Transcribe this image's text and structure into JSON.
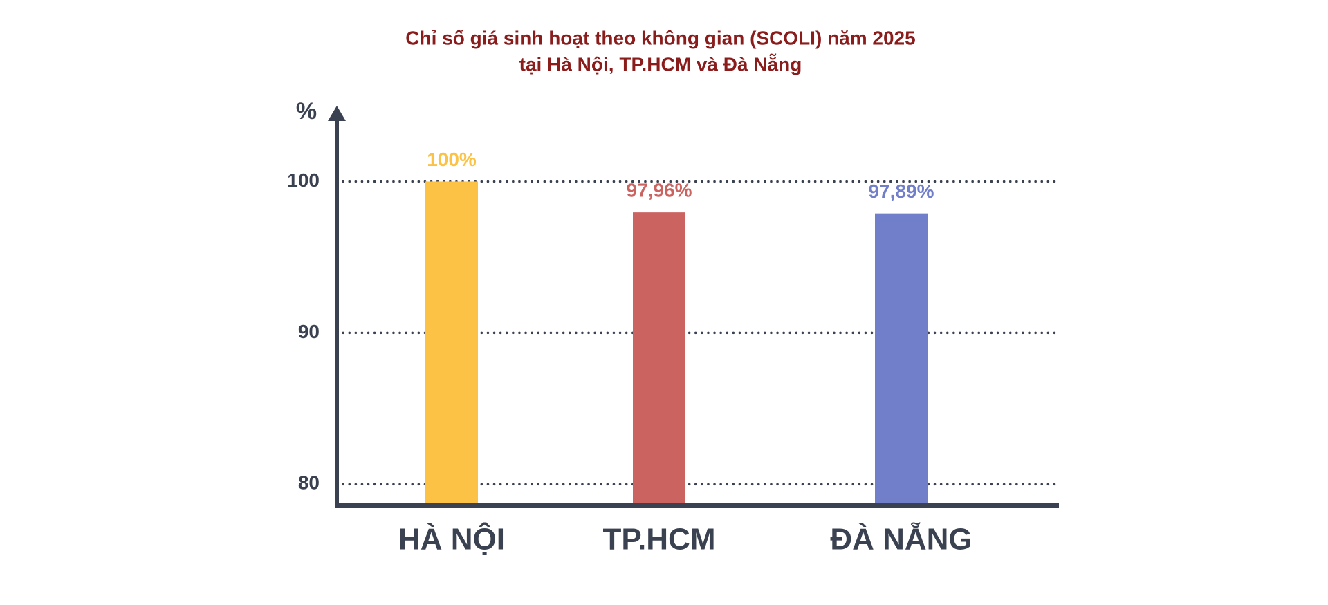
{
  "chart_data": {
    "type": "bar",
    "title": [
      "Chỉ số giá sinh hoạt theo không gian (SCOLI) năm 2025",
      "tại Hà Nội, TP.HCM và Đà Nẵng"
    ],
    "y_label": "%",
    "categories": [
      "HÀ NỘI",
      "TP.HCM",
      "ĐÀ NẴNG"
    ],
    "values": [
      100,
      97.96,
      97.89
    ],
    "value_labels": [
      "100%",
      "97,96%",
      "97,89%"
    ],
    "colors": [
      "#fcc246",
      "#cb6461",
      "#717ec9"
    ],
    "ylim": [
      78.6,
      105
    ],
    "yticks": [
      80,
      90,
      100
    ],
    "grid": true
  }
}
